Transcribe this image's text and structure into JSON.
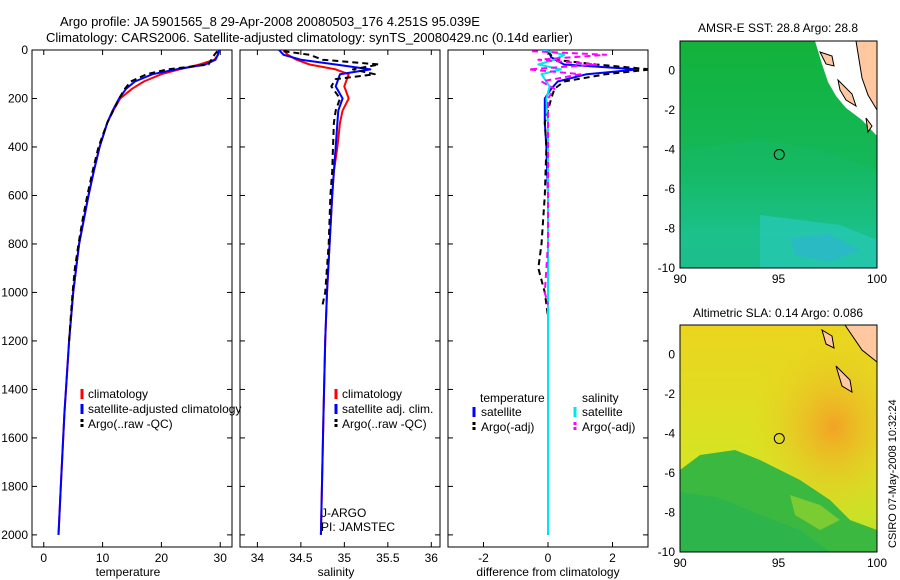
{
  "header": {
    "title_line1": "Argo profile: JA 5901565_8 29-Apr-2008 20080503_176 4.251S 95.039E",
    "title_line2": "Climatology: CARS2006. Satellite-adjusted climatology: synTS_20080429.nc (0.14d earlier)"
  },
  "side_label": "CSIRO 07-May-2008 10:32:24",
  "colors": {
    "climatology": "#ff0000",
    "satellite": "#0000ff",
    "argo": "#000000",
    "sal_satellite": "#00e5ee",
    "sal_argo": "#ff00ff",
    "land": "#ffc8a0",
    "sst_green": "#10b040",
    "sst_cyan": "#20c8b0"
  },
  "chart_data": [
    {
      "type": "line",
      "panel": "temperature",
      "xlabel": "temperature",
      "xlim": [
        -2,
        32
      ],
      "xticks": [
        0,
        10,
        20,
        30
      ],
      "ylim": [
        2050,
        0
      ],
      "yticks": [
        0,
        200,
        400,
        600,
        800,
        1000,
        1200,
        1400,
        1600,
        1800,
        2000
      ],
      "legend": [
        "climatology",
        "satellite-adjusted climatology",
        "Argo(..raw -QC)"
      ],
      "series": [
        {
          "name": "climatology",
          "color": "#ff0000",
          "depth": [
            0,
            20,
            40,
            60,
            80,
            100,
            130,
            160,
            200,
            250,
            300,
            400,
            500,
            600,
            700,
            800,
            1000,
            1200,
            1500,
            1800,
            2000
          ],
          "values": [
            29.8,
            29.6,
            29.0,
            26.5,
            23.0,
            20.0,
            17.0,
            15.0,
            13.0,
            11.8,
            10.8,
            9.5,
            8.5,
            7.6,
            6.8,
            6.0,
            5.0,
            4.3,
            3.5,
            2.9,
            2.5
          ]
        },
        {
          "name": "satellite-adjusted climatology",
          "color": "#0000ff",
          "depth": [
            0,
            20,
            40,
            60,
            80,
            100,
            130,
            160,
            200,
            250,
            300,
            400,
            500,
            600,
            700,
            800,
            1000,
            1200,
            1500,
            1800,
            2000
          ],
          "values": [
            29.8,
            29.6,
            29.2,
            27.5,
            22.5,
            18.5,
            15.5,
            14.0,
            12.8,
            11.7,
            10.8,
            9.5,
            8.5,
            7.6,
            6.8,
            6.0,
            5.0,
            4.3,
            3.5,
            2.9,
            2.5
          ]
        },
        {
          "name": "Argo(..raw -QC)",
          "color": "#000000",
          "dashed": true,
          "depth": [
            5,
            20,
            40,
            60,
            80,
            100,
            130,
            160,
            200,
            250,
            300,
            400,
            500,
            600,
            700,
            800,
            900,
            1000,
            1100,
            1200
          ],
          "values": [
            29.5,
            29.0,
            28.5,
            28.0,
            21.0,
            17.5,
            14.8,
            13.8,
            12.8,
            11.8,
            10.8,
            9.3,
            8.3,
            7.4,
            6.6,
            5.9,
            5.3,
            4.9,
            4.6,
            4.3
          ]
        }
      ]
    },
    {
      "type": "line",
      "panel": "salinity",
      "xlabel": "salinity",
      "xlim": [
        33.8,
        36.1
      ],
      "xticks": [
        34,
        34.5,
        35,
        35.5,
        36
      ],
      "ylim": [
        2050,
        0
      ],
      "legend": [
        "climatology",
        "satellite adj. clim.",
        "Argo(..raw -QC)"
      ],
      "annotations": [
        "J-ARGO",
        "PI: JAMSTEC"
      ],
      "series": [
        {
          "name": "climatology",
          "color": "#ff0000",
          "depth": [
            0,
            20,
            40,
            60,
            80,
            100,
            150,
            200,
            250,
            300,
            400,
            500,
            600,
            800,
            1000,
            1200,
            1500,
            2000
          ],
          "values": [
            34.3,
            34.35,
            34.45,
            34.6,
            34.9,
            35.05,
            35.0,
            35.05,
            34.98,
            34.95,
            34.92,
            34.88,
            34.86,
            34.83,
            34.8,
            34.78,
            34.76,
            34.73
          ]
        },
        {
          "name": "satellite adj. clim.",
          "color": "#0000ff",
          "depth": [
            0,
            20,
            40,
            60,
            80,
            100,
            150,
            200,
            250,
            300,
            400,
            500,
            600,
            800,
            1000,
            1200,
            1500,
            2000
          ],
          "values": [
            34.25,
            34.3,
            34.5,
            34.9,
            35.3,
            34.95,
            34.9,
            34.98,
            34.93,
            34.92,
            34.9,
            34.88,
            34.86,
            34.83,
            34.8,
            34.78,
            34.76,
            34.73
          ]
        },
        {
          "name": "Argo(..raw -QC)",
          "color": "#000000",
          "dashed": true,
          "depth": [
            5,
            20,
            40,
            60,
            80,
            100,
            120,
            150,
            200,
            250,
            300,
            400,
            500,
            600,
            800,
            1000,
            1050
          ],
          "values": [
            34.3,
            34.6,
            34.75,
            35.4,
            35.1,
            35.35,
            34.9,
            34.85,
            34.95,
            34.9,
            34.88,
            34.87,
            34.86,
            34.84,
            34.82,
            34.78,
            34.75
          ]
        }
      ]
    },
    {
      "type": "line",
      "panel": "difference",
      "xlabel": "difference from climatology",
      "xlim": [
        -3.1,
        3.1
      ],
      "xticks": [
        -2,
        0,
        2
      ],
      "ylim": [
        2050,
        0
      ],
      "legend_headers": [
        "temperature",
        "salinity"
      ],
      "legend": [
        "satellite",
        "Argo(-adj)",
        "satellite",
        "Argo(-adj)"
      ],
      "series": [
        {
          "name": "temperature satellite",
          "color": "#0000ff",
          "depth": [
            0,
            30,
            60,
            80,
            100,
            130,
            160,
            200,
            300,
            400,
            600,
            800,
            1000,
            1200,
            1500,
            2000
          ],
          "values": [
            0,
            0.1,
            0.5,
            2.8,
            1.2,
            0.3,
            0.1,
            -0.1,
            -0.1,
            -0.05,
            0,
            0,
            0,
            0,
            0,
            0
          ]
        },
        {
          "name": "temperature Argo(-adj)",
          "color": "#000000",
          "dashed": true,
          "depth": [
            5,
            40,
            60,
            80,
            100,
            130,
            160,
            200,
            300,
            400,
            600,
            800,
            900,
            1000,
            1100,
            1200
          ],
          "values": [
            0,
            0.2,
            1.5,
            3.2,
            1.8,
            0.5,
            0.2,
            0.1,
            -0.1,
            -0.05,
            -0.1,
            -0.2,
            -0.3,
            -0.1,
            0,
            0
          ]
        },
        {
          "name": "salinity satellite",
          "color": "#00e5ee",
          "depth": [
            0,
            20,
            40,
            60,
            80,
            100,
            150,
            200,
            300,
            500,
            800,
            1000,
            1500,
            2000
          ],
          "values": [
            -0.2,
            0.5,
            0.2,
            -0.3,
            0.4,
            -0.2,
            0.05,
            -0.05,
            0,
            0,
            0,
            0,
            0,
            0
          ]
        },
        {
          "name": "salinity Argo(-adj)",
          "color": "#ff00ff",
          "dashed": true,
          "depth": [
            5,
            20,
            40,
            60,
            80,
            100,
            130,
            160,
            200,
            300,
            500,
            800,
            1000,
            1050
          ],
          "values": [
            -0.5,
            1.8,
            -0.3,
            1.5,
            -0.6,
            1.0,
            -0.2,
            0.2,
            0,
            0,
            0,
            0,
            -0.1,
            0
          ]
        }
      ]
    },
    {
      "type": "heatmap",
      "panel": "sst_map",
      "title": "AMSR-E SST: 28.8 Argo: 28.8",
      "xlim": [
        90,
        100
      ],
      "ylim": [
        -10,
        1.5
      ],
      "xticks": [
        90,
        95,
        100
      ],
      "yticks": [
        0,
        -2,
        -4,
        -6,
        -8,
        -10
      ],
      "marker": {
        "lon": 95.039,
        "lat": -4.251
      }
    },
    {
      "type": "heatmap",
      "panel": "sla_map",
      "title": "Altimetric SLA: 0.14 Argo: 0.086",
      "xlim": [
        90,
        100
      ],
      "ylim": [
        -10,
        1.5
      ],
      "xticks": [
        90,
        95,
        100
      ],
      "yticks": [
        0,
        -2,
        -4,
        -6,
        -8,
        -10
      ],
      "marker": {
        "lon": 95.039,
        "lat": -4.251
      }
    }
  ]
}
